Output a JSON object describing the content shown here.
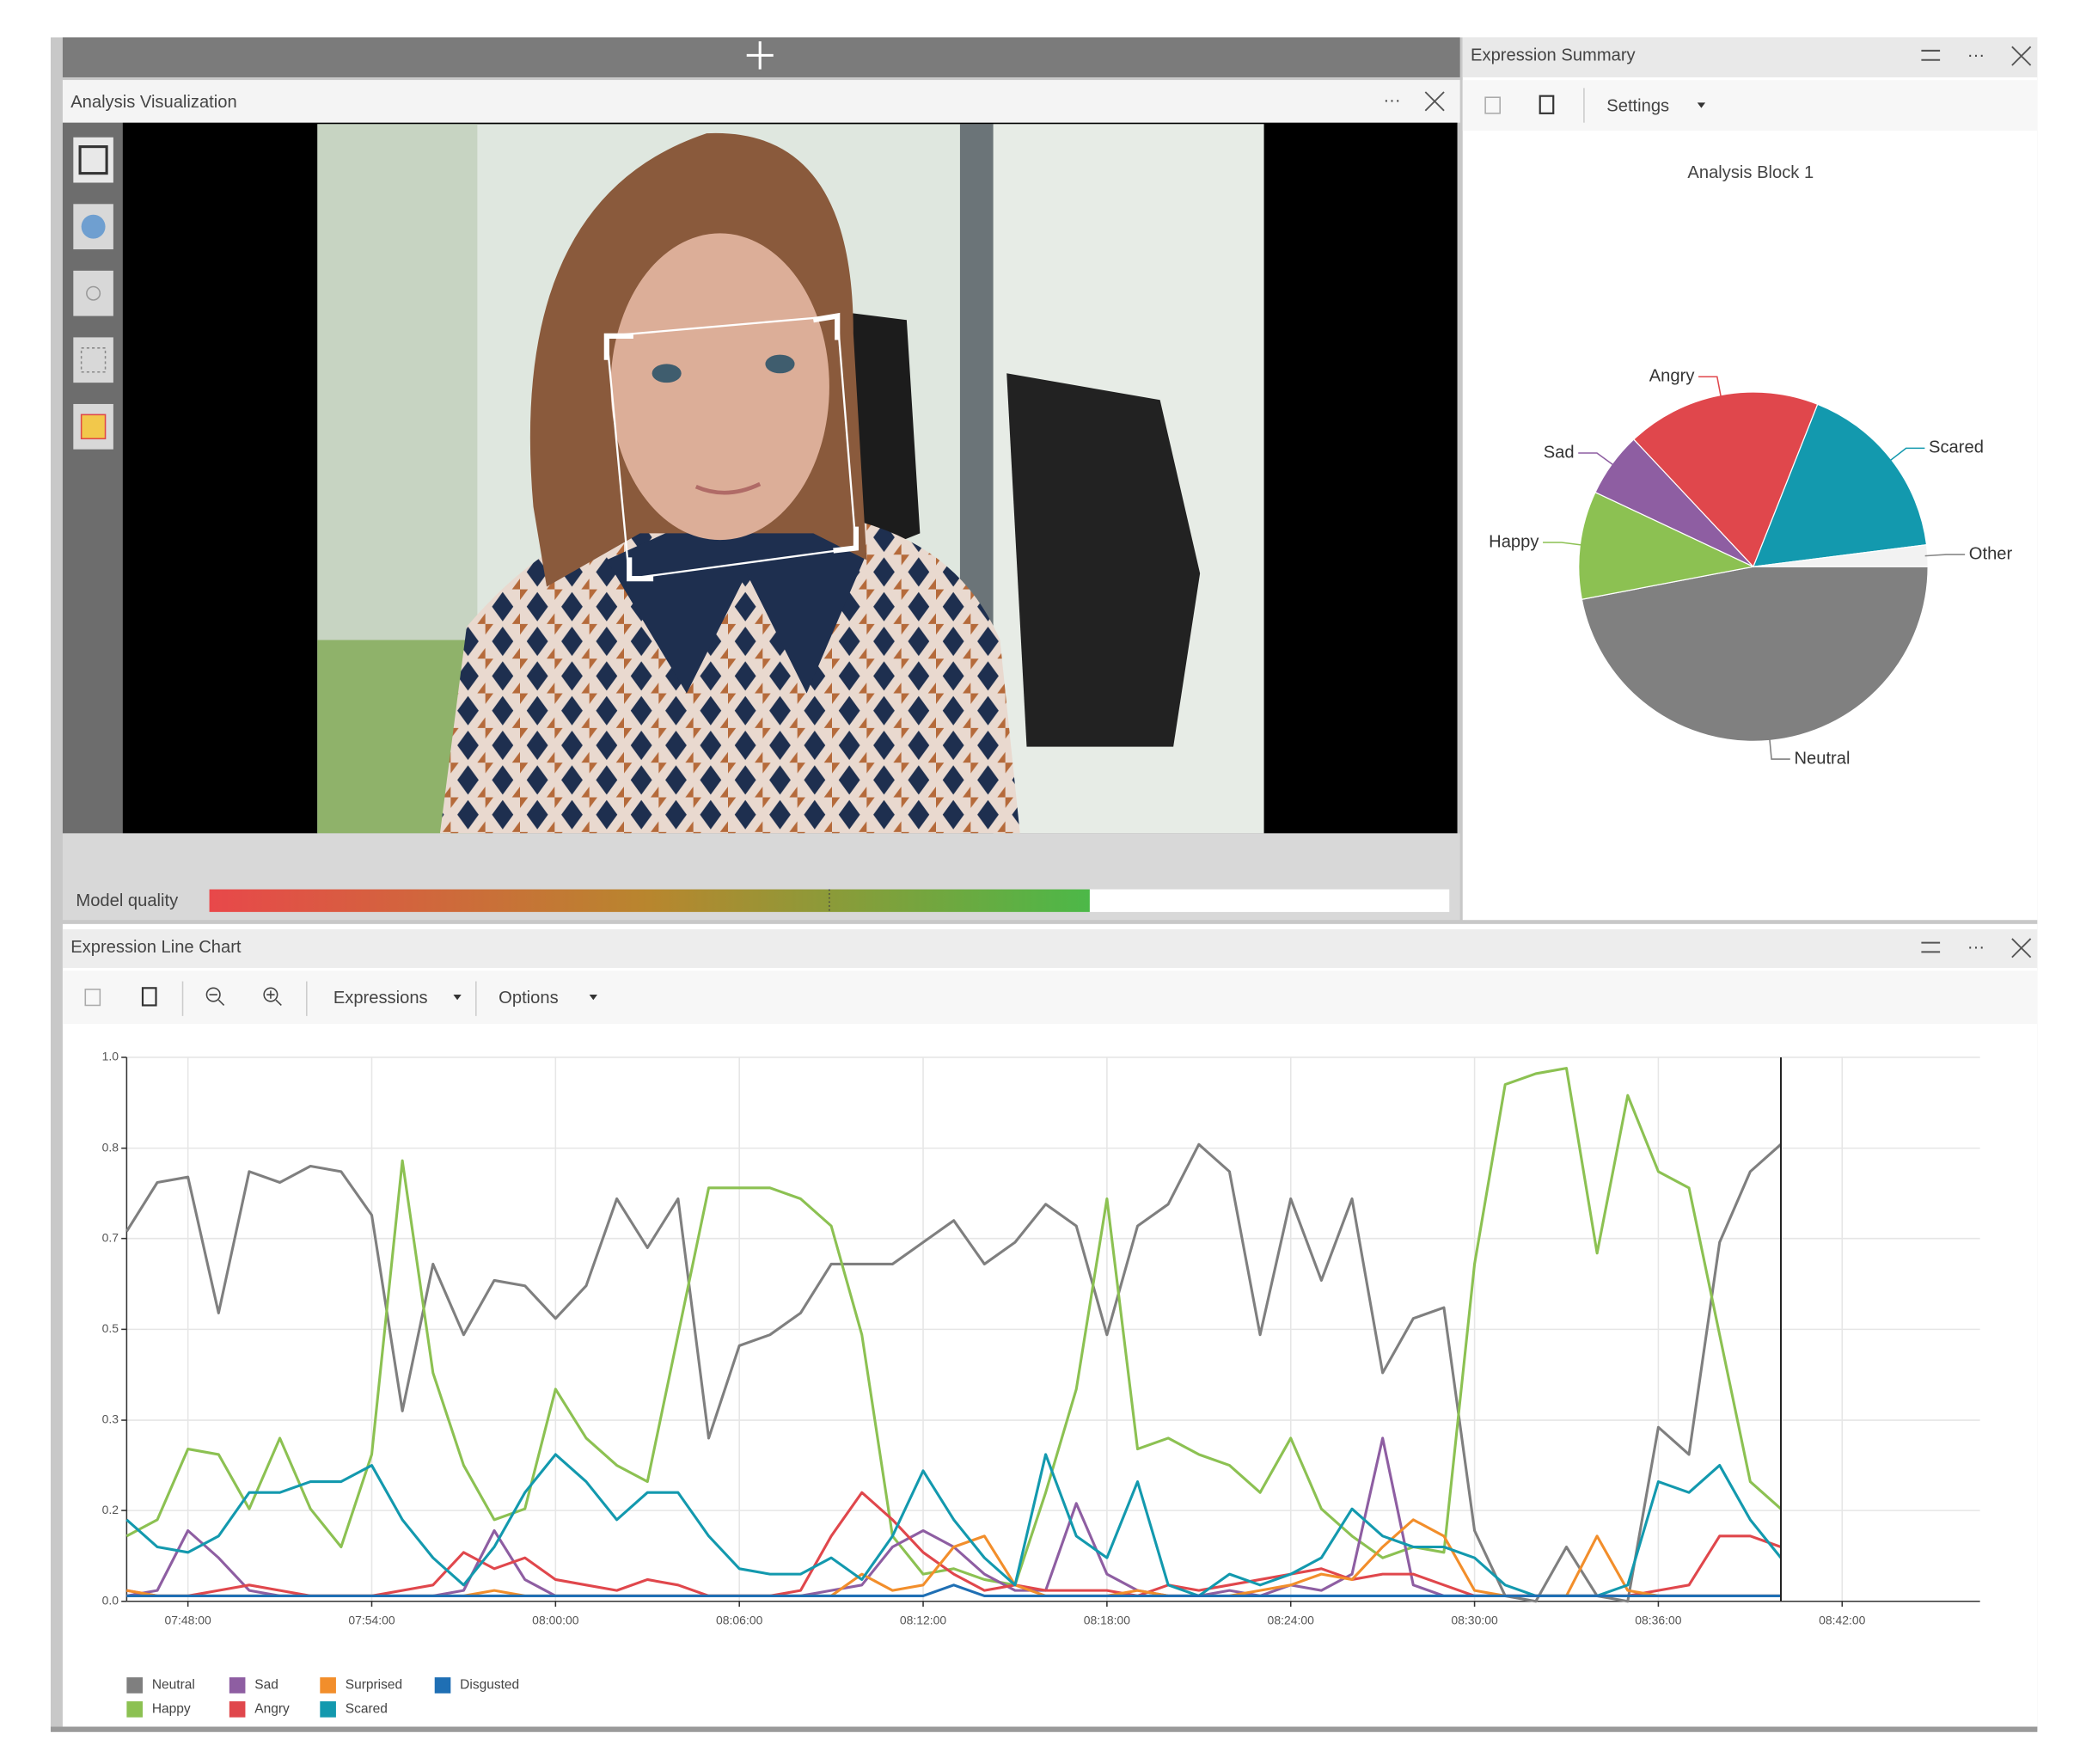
{
  "analysis_panel": {
    "title": "Analysis Visualization",
    "model_quality": {
      "label": "Model quality",
      "value": 0.71
    }
  },
  "summary_panel": {
    "title": "Expression Summary",
    "settings": "Settings"
  },
  "line_panel": {
    "title": "Expression Line Chart",
    "expressions": "Expressions",
    "options": "Options"
  },
  "chart_data": [
    {
      "type": "pie",
      "title": "Analysis Block 1",
      "categories": [
        "Neutral",
        "Happy",
        "Sad",
        "Angry",
        "Scared",
        "Other"
      ],
      "values": [
        47,
        10,
        6,
        18,
        17,
        2
      ],
      "colors": [
        "#808080",
        "#8cc152",
        "#8e5ea2",
        "#e0474c",
        "#1399ae",
        "#f2f2f2"
      ]
    },
    {
      "type": "line",
      "grid": true,
      "x": [
        "07:46:00",
        "07:47:00",
        "07:48:00",
        "07:49:00",
        "07:50:00",
        "07:51:00",
        "07:52:00",
        "07:53:00",
        "07:54:00",
        "07:55:00",
        "07:56:00",
        "07:57:00",
        "07:58:00",
        "07:59:00",
        "08:00:00",
        "08:01:00",
        "08:02:00",
        "08:03:00",
        "08:04:00",
        "08:05:00",
        "08:06:00",
        "08:07:00",
        "08:08:00",
        "08:09:00",
        "08:10:00",
        "08:11:00",
        "08:12:00",
        "08:13:00",
        "08:14:00",
        "08:15:00",
        "08:16:00",
        "08:17:00",
        "08:18:00",
        "08:19:00",
        "08:20:00",
        "08:21:00",
        "08:22:00",
        "08:23:00",
        "08:24:00",
        "08:25:00",
        "08:26:00",
        "08:27:00",
        "08:28:00",
        "08:29:00",
        "08:30:00",
        "08:31:00",
        "08:32:00",
        "08:33:00",
        "08:34:00",
        "08:35:00",
        "08:36:00",
        "08:37:00",
        "08:38:00",
        "08:39:00",
        "08:40:00"
      ],
      "xlim": [
        "07:46:00",
        "08:46:30"
      ],
      "xticks": [
        "07:48:00",
        "07:54:00",
        "08:00:00",
        "08:06:00",
        "08:12:00",
        "08:18:00",
        "08:24:00",
        "08:30:00",
        "08:36:00",
        "08:42:00"
      ],
      "ylim": [
        0,
        1
      ],
      "yticks": [
        {
          "value": 0,
          "label": "0.0"
        },
        {
          "value": 0.167,
          "label": "0.2"
        },
        {
          "value": 0.333,
          "label": "0.3"
        },
        0.5,
        {
          "value": 0.667,
          "label": "0.7"
        },
        {
          "value": 0.833,
          "label": "0.8"
        },
        {
          "value": 1,
          "label": "1.0"
        }
      ],
      "series": [
        {
          "name": "Neutral",
          "color": "#7f7f7f",
          "values": [
            0.68,
            0.77,
            0.78,
            0.53,
            0.79,
            0.77,
            0.8,
            0.79,
            0.71,
            0.35,
            0.62,
            0.49,
            0.59,
            0.58,
            0.52,
            0.58,
            0.74,
            0.65,
            0.74,
            0.3,
            0.47,
            0.49,
            0.53,
            0.62,
            0.62,
            0.62,
            0.66,
            0.7,
            0.62,
            0.66,
            0.73,
            0.69,
            0.49,
            0.69,
            0.73,
            0.84,
            0.79,
            0.49,
            0.74,
            0.59,
            0.74,
            0.42,
            0.52,
            0.54,
            0.13,
            0.01,
            0,
            0.1,
            0.01,
            0,
            0.32,
            0.27,
            0.66,
            0.79,
            0.84
          ]
        },
        {
          "name": "Happy",
          "color": "#8cc152",
          "values": [
            0.12,
            0.15,
            0.28,
            0.27,
            0.17,
            0.3,
            0.17,
            0.1,
            0.27,
            0.81,
            0.42,
            0.25,
            0.15,
            0.17,
            0.39,
            0.3,
            0.25,
            0.22,
            0.49,
            0.76,
            0.76,
            0.76,
            0.74,
            0.69,
            0.49,
            0.12,
            0.05,
            0.06,
            0.04,
            0.03,
            0.2,
            0.39,
            0.74,
            0.28,
            0.3,
            0.27,
            0.25,
            0.2,
            0.3,
            0.17,
            0.12,
            0.08,
            0.1,
            0.09,
            0.62,
            0.95,
            0.97,
            0.98,
            0.64,
            0.93,
            0.79,
            0.76,
            0.49,
            0.22,
            0.17
          ]
        },
        {
          "name": "Sad",
          "color": "#8e5ea2",
          "values": [
            0.01,
            0.02,
            0.13,
            0.08,
            0.02,
            0.01,
            0.01,
            0.01,
            0.01,
            0.01,
            0.01,
            0.02,
            0.13,
            0.04,
            0.01,
            0.01,
            0.01,
            0.01,
            0.01,
            0.01,
            0.01,
            0.01,
            0.01,
            0.02,
            0.03,
            0.1,
            0.13,
            0.1,
            0.05,
            0.02,
            0.02,
            0.18,
            0.05,
            0.02,
            0.01,
            0.01,
            0.02,
            0.01,
            0.03,
            0.02,
            0.05,
            0.3,
            0.03,
            0.01,
            0.01,
            0.01,
            0.01,
            0.01,
            0.01,
            0.01,
            0.01,
            0.01,
            0.01,
            0.01,
            0.01
          ]
        },
        {
          "name": "Angry",
          "color": "#e0474c",
          "values": [
            0.02,
            0.01,
            0.01,
            0.02,
            0.03,
            0.02,
            0.01,
            0.01,
            0.01,
            0.02,
            0.03,
            0.09,
            0.06,
            0.08,
            0.04,
            0.03,
            0.02,
            0.04,
            0.03,
            0.01,
            0.01,
            0.01,
            0.02,
            0.12,
            0.2,
            0.15,
            0.09,
            0.05,
            0.02,
            0.03,
            0.02,
            0.02,
            0.02,
            0.01,
            0.03,
            0.02,
            0.03,
            0.04,
            0.05,
            0.06,
            0.04,
            0.05,
            0.05,
            0.03,
            0.01,
            0.01,
            0.01,
            0.01,
            0.01,
            0.01,
            0.02,
            0.03,
            0.12,
            0.12,
            0.1
          ]
        },
        {
          "name": "Surprised",
          "color": "#f28e2b",
          "values": [
            0.02,
            0.01,
            0.01,
            0.01,
            0.01,
            0.01,
            0.01,
            0.01,
            0.01,
            0.01,
            0.01,
            0.01,
            0.02,
            0.01,
            0.01,
            0.01,
            0.01,
            0.01,
            0.01,
            0.01,
            0.01,
            0.01,
            0.01,
            0.01,
            0.05,
            0.02,
            0.03,
            0.1,
            0.12,
            0.03,
            0.01,
            0.01,
            0.01,
            0.02,
            0.01,
            0.01,
            0.01,
            0.02,
            0.03,
            0.05,
            0.04,
            0.1,
            0.15,
            0.12,
            0.02,
            0.01,
            0.01,
            0.01,
            0.12,
            0.02,
            0.01,
            0.01,
            0.01,
            0.01,
            0.01
          ]
        },
        {
          "name": "Scared",
          "color": "#1399ae",
          "values": [
            0.15,
            0.1,
            0.09,
            0.12,
            0.2,
            0.2,
            0.22,
            0.22,
            0.25,
            0.15,
            0.08,
            0.03,
            0.1,
            0.2,
            0.27,
            0.22,
            0.15,
            0.2,
            0.2,
            0.12,
            0.06,
            0.05,
            0.05,
            0.08,
            0.04,
            0.12,
            0.24,
            0.15,
            0.08,
            0.03,
            0.27,
            0.12,
            0.08,
            0.22,
            0.03,
            0.01,
            0.05,
            0.03,
            0.05,
            0.08,
            0.17,
            0.12,
            0.1,
            0.1,
            0.08,
            0.03,
            0.01,
            0.01,
            0.01,
            0.03,
            0.22,
            0.2,
            0.25,
            0.15,
            0.08
          ]
        },
        {
          "name": "Disgusted",
          "color": "#1f6fb4",
          "values": [
            0.01,
            0.01,
            0.01,
            0.01,
            0.01,
            0.01,
            0.01,
            0.01,
            0.01,
            0.01,
            0.01,
            0.01,
            0.01,
            0.01,
            0.01,
            0.01,
            0.01,
            0.01,
            0.01,
            0.01,
            0.01,
            0.01,
            0.01,
            0.01,
            0.01,
            0.01,
            0.01,
            0.03,
            0.01,
            0.01,
            0.01,
            0.01,
            0.01,
            0.01,
            0.01,
            0.01,
            0.01,
            0.01,
            0.01,
            0.01,
            0.01,
            0.01,
            0.01,
            0.01,
            0.01,
            0.01,
            0.01,
            0.01,
            0.01,
            0.01,
            0.01,
            0.01,
            0.01,
            0.01,
            0.01
          ]
        }
      ]
    }
  ]
}
